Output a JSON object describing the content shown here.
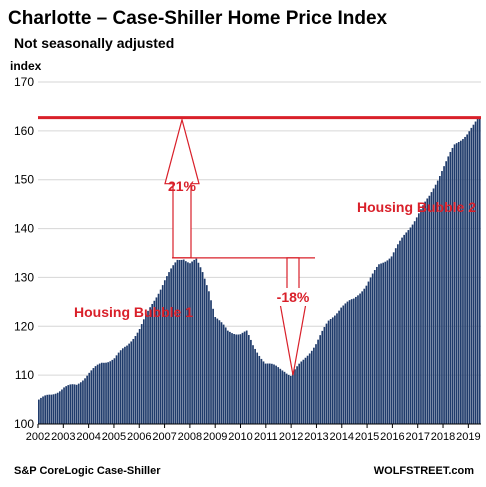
{
  "chart_data": {
    "type": "bar",
    "title": "Charlotte – Case-Shiller Home Price Index",
    "subtitle": "Not seasonally adjusted",
    "ylabel": "index",
    "ylim": [
      100,
      170
    ],
    "yticks": [
      100,
      110,
      120,
      130,
      140,
      150,
      160,
      170
    ],
    "xticks": [
      "2002",
      "2003",
      "2004",
      "2005",
      "2006",
      "2007",
      "2008",
      "2009",
      "2010",
      "2011",
      "2012",
      "2013",
      "2014",
      "2015",
      "2016",
      "2017",
      "2018",
      "2019"
    ],
    "x_start": 2002,
    "x_end": 2019.5,
    "bar_color": "#1f3b6b",
    "reference_line": {
      "value": 162.7,
      "color": "#d9202a"
    },
    "annotations": {
      "bubble1": "Housing Bubble 1",
      "bubble2": "Housing Bubble 2",
      "rise_pct": "21%",
      "fall_pct": "-18%"
    },
    "peak_2007": 134.0,
    "trough_2012": 110.0,
    "source": "S&P CoreLogic Case-Shiller",
    "brand": "WOLFSTREET.com",
    "keypoints": [
      [
        2002.0,
        105.0
      ],
      [
        2002.5,
        106.0
      ],
      [
        2003.0,
        107.5
      ],
      [
        2003.5,
        108.0
      ],
      [
        2004.0,
        110.5
      ],
      [
        2004.5,
        112.5
      ],
      [
        2005.0,
        113.5
      ],
      [
        2005.5,
        116.0
      ],
      [
        2006.0,
        119.5
      ],
      [
        2006.5,
        124.5
      ],
      [
        2007.0,
        129.5
      ],
      [
        2007.5,
        133.5
      ],
      [
        2007.75,
        134.0
      ],
      [
        2008.0,
        133.0
      ],
      [
        2008.25,
        133.5
      ],
      [
        2008.5,
        131.0
      ],
      [
        2008.75,
        127.5
      ],
      [
        2009.0,
        122.0
      ],
      [
        2009.5,
        119.0
      ],
      [
        2010.0,
        118.5
      ],
      [
        2010.25,
        118.8
      ],
      [
        2010.5,
        116.0
      ],
      [
        2011.0,
        112.5
      ],
      [
        2011.5,
        111.5
      ],
      [
        2011.75,
        111.0
      ],
      [
        2012.0,
        110.0
      ],
      [
        2012.5,
        113.0
      ],
      [
        2013.0,
        116.5
      ],
      [
        2013.5,
        121.0
      ],
      [
        2014.0,
        124.0
      ],
      [
        2014.5,
        125.5
      ],
      [
        2015.0,
        128.5
      ],
      [
        2015.5,
        132.5
      ],
      [
        2016.0,
        134.5
      ],
      [
        2016.5,
        138.5
      ],
      [
        2017.0,
        142.5
      ],
      [
        2017.5,
        146.5
      ],
      [
        2018.0,
        152.0
      ],
      [
        2018.5,
        157.0
      ],
      [
        2019.0,
        159.5
      ],
      [
        2019.25,
        161.0
      ],
      [
        2019.5,
        162.7
      ]
    ]
  }
}
